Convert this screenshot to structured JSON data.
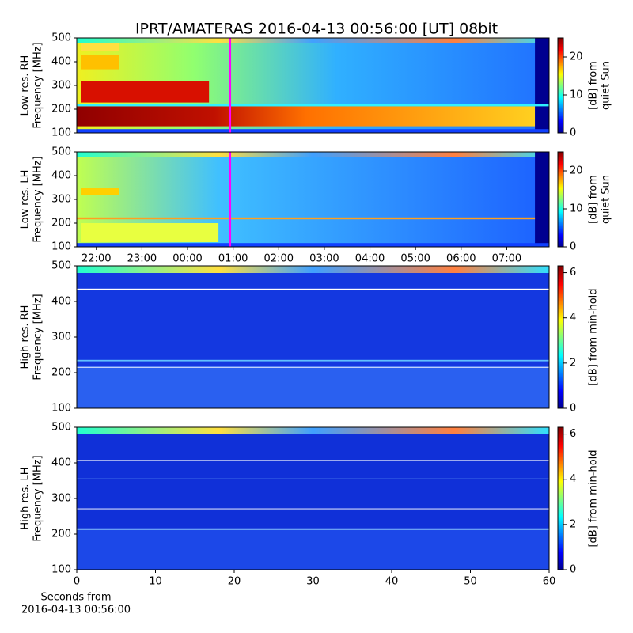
{
  "title": "IPRT/AMATERAS 2016-04-13 00:56:00 [UT]   08bit",
  "chart_data": [
    {
      "type": "heatmap",
      "ylabel": [
        "Low res. RH",
        "Frequency [MHz]"
      ],
      "ylim": [
        100,
        500
      ],
      "yticks": [
        100,
        200,
        300,
        400,
        500
      ],
      "xlim": [
        21.57,
        31.93
      ],
      "marker_x": 24.933,
      "marker_color": "#ff00ff",
      "colorbar": {
        "label": [
          "[dB] from",
          "quiet Sun"
        ],
        "lim": [
          0,
          25
        ],
        "ticks": [
          0,
          10,
          20
        ],
        "colormap": "jet"
      }
    },
    {
      "type": "heatmap",
      "ylabel": [
        "Low res. LH",
        "Frequency [MHz]"
      ],
      "ylim": [
        100,
        500
      ],
      "yticks": [
        100,
        200,
        300,
        400,
        500
      ],
      "xlim": [
        21.57,
        31.93
      ],
      "marker_x": 24.933,
      "marker_color": "#ff00ff",
      "xticks": [
        {
          "value": 22,
          "label": "22:00"
        },
        {
          "value": 23,
          "label": "23:00"
        },
        {
          "value": 24,
          "label": "00:00"
        },
        {
          "value": 25,
          "label": "01:00"
        },
        {
          "value": 26,
          "label": "02:00"
        },
        {
          "value": 27,
          "label": "03:00"
        },
        {
          "value": 28,
          "label": "04:00"
        },
        {
          "value": 29,
          "label": "05:00"
        },
        {
          "value": 30,
          "label": "06:00"
        },
        {
          "value": 31,
          "label": "07:00"
        }
      ],
      "colorbar": {
        "label": [
          "[dB] from",
          "quiet Sun"
        ],
        "lim": [
          0,
          25
        ],
        "ticks": [
          0,
          10,
          20
        ],
        "colormap": "jet"
      }
    },
    {
      "type": "heatmap",
      "ylabel": [
        "High res. RH",
        "Frequency [MHz]"
      ],
      "ylim": [
        100,
        500
      ],
      "yticks": [
        100,
        200,
        300,
        400,
        500
      ],
      "xlim": [
        0,
        60
      ],
      "colorbar": {
        "label": [
          "[dB] from min-hold"
        ],
        "lim": [
          0,
          6.3
        ],
        "ticks": [
          0,
          2,
          4,
          6
        ],
        "colormap": "jet"
      }
    },
    {
      "type": "heatmap",
      "ylabel": [
        "High res. LH",
        "Frequency [MHz]"
      ],
      "ylim": [
        100,
        500
      ],
      "yticks": [
        100,
        200,
        300,
        400,
        500
      ],
      "xlim": [
        0,
        60
      ],
      "xticks": [
        0,
        10,
        20,
        30,
        40,
        50,
        60
      ],
      "xlabel": [
        "Seconds from",
        "2016-04-13 00:56:00"
      ],
      "colorbar": {
        "label": [
          "[dB] from min-hold"
        ],
        "lim": [
          0,
          6.3
        ],
        "ticks": [
          0,
          2,
          4,
          6
        ],
        "colormap": "jet"
      }
    }
  ]
}
